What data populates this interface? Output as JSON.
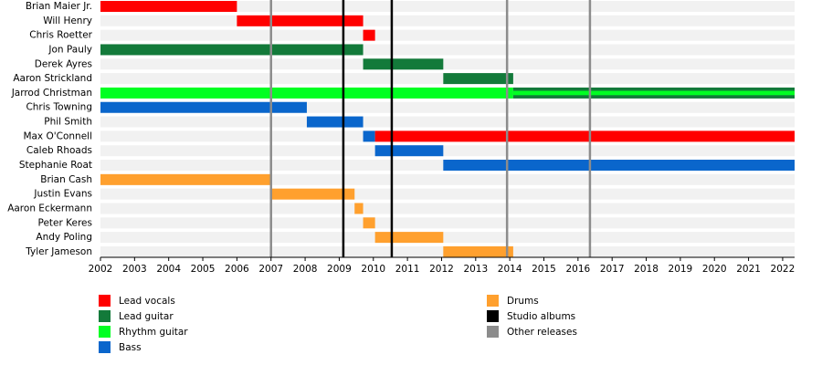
{
  "chart_data": {
    "type": "timeline",
    "xlim": [
      2002,
      2022.35
    ],
    "xticks": [
      2002,
      2003,
      2004,
      2005,
      2006,
      2007,
      2008,
      2009,
      2010,
      2011,
      2012,
      2013,
      2014,
      2015,
      2016,
      2017,
      2018,
      2019,
      2020,
      2021,
      2022
    ],
    "roles": [
      {
        "name": "Lead vocals",
        "color": "#ff0000"
      },
      {
        "name": "Lead guitar",
        "color": "#137a3a"
      },
      {
        "name": "Rhythm guitar",
        "color": "#00ff22"
      },
      {
        "name": "Bass",
        "color": "#0a66cc"
      },
      {
        "name": "Drums",
        "color": "#ffa02e"
      }
    ],
    "events": [
      {
        "name": "Studio albums",
        "color": "#000000",
        "values": [
          2009.12,
          2010.54
        ]
      },
      {
        "name": "Other releases",
        "color": "#8c8c8c",
        "values": [
          2007.0,
          2013.92,
          2016.35
        ]
      }
    ],
    "members": [
      {
        "name": "Brian Maier Jr.",
        "segments": [
          {
            "role": "Lead vocals",
            "start": 2002,
            "end": 2006.0
          }
        ]
      },
      {
        "name": "Will Henry",
        "segments": [
          {
            "role": "Lead vocals",
            "start": 2006.0,
            "end": 2009.7
          }
        ]
      },
      {
        "name": "Chris Roetter",
        "segments": [
          {
            "role": "Lead vocals",
            "start": 2009.7,
            "end": 2010.05
          }
        ]
      },
      {
        "name": "Jon Pauly",
        "segments": [
          {
            "role": "Lead guitar",
            "start": 2002,
            "end": 2009.7
          }
        ]
      },
      {
        "name": "Derek Ayres",
        "segments": [
          {
            "role": "Lead guitar",
            "start": 2009.7,
            "end": 2012.05
          }
        ]
      },
      {
        "name": "Aaron Strickland",
        "segments": [
          {
            "role": "Lead guitar",
            "start": 2012.05,
            "end": 2014.1
          }
        ]
      },
      {
        "name": "Jarrod Christman",
        "segments": [
          {
            "role": "Rhythm guitar",
            "start": 2002,
            "end": 2014.1
          },
          {
            "role": "Lead guitar",
            "start": 2014.1,
            "end": 2022.35
          },
          {
            "role": "Rhythm guitar",
            "start": 2014.1,
            "end": 2022.35
          }
        ]
      },
      {
        "name": "Chris Towning",
        "segments": [
          {
            "role": "Bass",
            "start": 2002,
            "end": 2008.05
          }
        ]
      },
      {
        "name": "Phil Smith",
        "segments": [
          {
            "role": "Bass",
            "start": 2008.05,
            "end": 2009.7
          }
        ]
      },
      {
        "name": "Max O'Connell",
        "segments": [
          {
            "role": "Bass",
            "start": 2009.7,
            "end": 2010.05
          },
          {
            "role": "Lead vocals",
            "start": 2010.05,
            "end": 2022.35
          }
        ]
      },
      {
        "name": "Caleb Rhoads",
        "segments": [
          {
            "role": "Bass",
            "start": 2010.05,
            "end": 2012.05
          }
        ]
      },
      {
        "name": "Stephanie Roat",
        "segments": [
          {
            "role": "Bass",
            "start": 2012.05,
            "end": 2022.35
          }
        ]
      },
      {
        "name": "Brian Cash",
        "segments": [
          {
            "role": "Drums",
            "start": 2002,
            "end": 2007.0
          }
        ]
      },
      {
        "name": "Justin Evans",
        "segments": [
          {
            "role": "Drums",
            "start": 2007.0,
            "end": 2009.45
          }
        ]
      },
      {
        "name": "Aaron Eckermann",
        "segments": [
          {
            "role": "Drums",
            "start": 2009.45,
            "end": 2009.7
          }
        ]
      },
      {
        "name": "Peter Keres",
        "segments": [
          {
            "role": "Drums",
            "start": 2009.7,
            "end": 2010.05
          }
        ]
      },
      {
        "name": "Andy Poling",
        "segments": [
          {
            "role": "Drums",
            "start": 2010.05,
            "end": 2012.05
          }
        ]
      },
      {
        "name": "Tyler Jameson",
        "segments": [
          {
            "role": "Drums",
            "start": 2012.05,
            "end": 2014.1
          }
        ]
      }
    ]
  }
}
